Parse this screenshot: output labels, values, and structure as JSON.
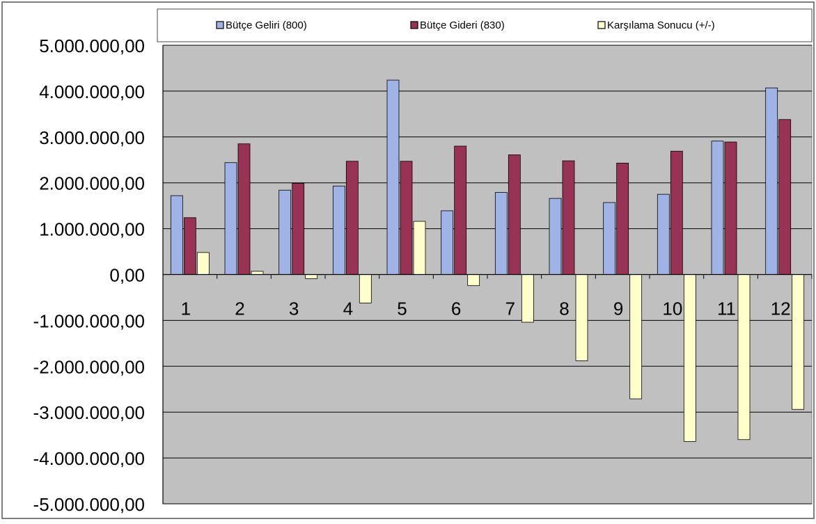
{
  "chart_data": {
    "type": "bar",
    "title": "",
    "xlabel": "",
    "ylabel": "",
    "categories": [
      "1",
      "2",
      "3",
      "4",
      "5",
      "6",
      "7",
      "8",
      "9",
      "10",
      "11",
      "12"
    ],
    "series": [
      {
        "name": "Bütçe Geliri (800)",
        "color": "#9fb3e6",
        "values": [
          1720000,
          2440000,
          1840000,
          1930000,
          4240000,
          1390000,
          1790000,
          1660000,
          1570000,
          1750000,
          2910000,
          4070000
        ]
      },
      {
        "name": "Bütçe Gideri (830)",
        "color": "#993355",
        "values": [
          1240000,
          2850000,
          1990000,
          2470000,
          2470000,
          2800000,
          2610000,
          2480000,
          2430000,
          2690000,
          2890000,
          3380000
        ]
      },
      {
        "name": "Karşılama Sonucu (+/-)",
        "color": "#ffffcc",
        "values": [
          480000,
          70000,
          -90000,
          -620000,
          1160000,
          -240000,
          -1040000,
          -1880000,
          -2710000,
          -3640000,
          -3600000,
          -2940000
        ]
      }
    ],
    "ylim": [
      -5000000,
      5000000
    ],
    "yticks": [
      5000000,
      4000000,
      3000000,
      2000000,
      1000000,
      0,
      -1000000,
      -2000000,
      -3000000,
      -4000000,
      -5000000
    ],
    "ytick_labels": [
      "5.000.000,00",
      "4.000.000,00",
      "3.000.000,00",
      "2.000.000,00",
      "1.000.000,00",
      "0,00",
      "-1.000.000,00",
      "-2.000.000,00",
      "-3.000.000,00",
      "-4.000.000,00",
      "-5.000.000,00"
    ],
    "grid": true,
    "legend_position": "top",
    "plot_background": "#c0c0c0"
  }
}
